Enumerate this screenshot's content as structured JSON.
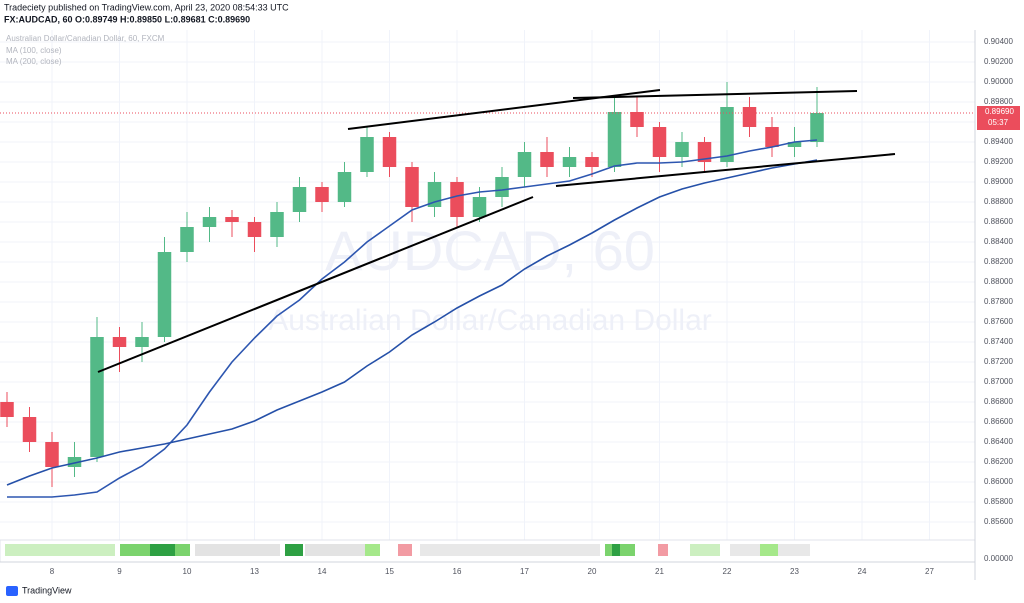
{
  "header": {
    "publisher_line": "Tradeciety published on TradingView.com, April 23, 2020 08:54:33 UTC",
    "symbol_line": "FX:AUDCAD, 60  O:0.89749  H:0.89850  L:0.89681  C:0.89690"
  },
  "footer": {
    "brand": "TradingView"
  },
  "chart_data": {
    "type": "candlestick",
    "title": "Australian Dollar/Canadian Dollar, 60, FXCM",
    "watermark": {
      "symbol": "AUDCAD, 60",
      "description": "Australian Dollar/Canadian Dollar"
    },
    "x": [
      -2,
      -1,
      0,
      1,
      2,
      3,
      4,
      5,
      6,
      7,
      8,
      9,
      10,
      11,
      12,
      13,
      14,
      15,
      16,
      17,
      18,
      19,
      20,
      21,
      22,
      23,
      24,
      25,
      26,
      27,
      28,
      29,
      30,
      31,
      32,
      33,
      34
    ],
    "open": [
      0.868,
      0.8665,
      0.864,
      0.8615,
      0.8625,
      0.8745,
      0.8735,
      0.8745,
      0.883,
      0.8855,
      0.8865,
      0.886,
      0.8845,
      0.887,
      0.8895,
      0.888,
      0.891,
      0.8945,
      0.8915,
      0.8875,
      0.89,
      0.8865,
      0.8885,
      0.8905,
      0.893,
      0.8915,
      0.8925,
      0.8915,
      0.897,
      0.8955,
      0.8925,
      0.894,
      0.892,
      0.8975,
      0.8955,
      0.8935,
      0.894
    ],
    "high": [
      0.869,
      0.8675,
      0.865,
      0.864,
      0.8765,
      0.8755,
      0.876,
      0.8845,
      0.887,
      0.8875,
      0.8872,
      0.8865,
      0.888,
      0.8905,
      0.89,
      0.892,
      0.8955,
      0.895,
      0.892,
      0.891,
      0.8905,
      0.8895,
      0.8915,
      0.894,
      0.8945,
      0.8935,
      0.893,
      0.8985,
      0.8985,
      0.896,
      0.895,
      0.8945,
      0.9,
      0.8985,
      0.8965,
      0.8955,
      0.8995
    ],
    "low": [
      0.8655,
      0.863,
      0.8595,
      0.8605,
      0.862,
      0.871,
      0.872,
      0.874,
      0.882,
      0.884,
      0.8845,
      0.883,
      0.8835,
      0.886,
      0.887,
      0.8875,
      0.8905,
      0.8905,
      0.886,
      0.8865,
      0.8855,
      0.886,
      0.8875,
      0.8895,
      0.8905,
      0.8905,
      0.8905,
      0.891,
      0.8945,
      0.891,
      0.8915,
      0.891,
      0.8915,
      0.8945,
      0.8925,
      0.8925,
      0.8935
    ],
    "close": [
      0.8665,
      0.864,
      0.8615,
      0.8625,
      0.8745,
      0.8735,
      0.8745,
      0.883,
      0.8855,
      0.8865,
      0.886,
      0.8845,
      0.887,
      0.8895,
      0.888,
      0.891,
      0.8945,
      0.8915,
      0.8875,
      0.89,
      0.8865,
      0.8885,
      0.8905,
      0.893,
      0.8915,
      0.8925,
      0.8915,
      0.897,
      0.8955,
      0.8925,
      0.894,
      0.892,
      0.8975,
      0.8955,
      0.8935,
      0.894,
      0.8969
    ],
    "up_color": "#53b987",
    "down_color": "#eb4d5c",
    "series": [
      {
        "name": "MA (100, close)",
        "color": "#2d56b0",
        "values": [
          0.8585,
          0.8585,
          0.8585,
          0.8587,
          0.859,
          0.8604,
          0.8616,
          0.8633,
          0.8657,
          0.869,
          0.872,
          0.8744,
          0.8766,
          0.8782,
          0.8803,
          0.882,
          0.884,
          0.8856,
          0.8872,
          0.888,
          0.8886,
          0.889,
          0.8892,
          0.8895,
          0.8898,
          0.8901,
          0.8908,
          0.8916,
          0.8919,
          0.8919,
          0.892,
          0.8923,
          0.8926,
          0.8931,
          0.8935,
          0.894,
          0.8942
        ]
      },
      {
        "name": "MA (200, close)",
        "color": "#2550a8",
        "values": [
          0.8597,
          0.8606,
          0.8614,
          0.8619,
          0.8624,
          0.863,
          0.8634,
          0.8638,
          0.8643,
          0.8648,
          0.8653,
          0.8661,
          0.8672,
          0.8681,
          0.869,
          0.87,
          0.8716,
          0.873,
          0.8747,
          0.876,
          0.8774,
          0.8786,
          0.8797,
          0.8813,
          0.8826,
          0.8837,
          0.8849,
          0.8862,
          0.8874,
          0.8885,
          0.8893,
          0.8899,
          0.8904,
          0.8909,
          0.8914,
          0.8918,
          0.8922
        ]
      }
    ],
    "last_price": {
      "value": 0.8969,
      "label": "0.89690"
    },
    "countdown": "05:37",
    "indicator_zero": "0.00000",
    "xlim": [
      -2.311,
      41.022
    ],
    "xticks": [
      {
        "value": 0,
        "label": "8"
      },
      {
        "value": 3,
        "label": "9"
      },
      {
        "value": 6,
        "label": "10"
      },
      {
        "value": 9,
        "label": "13"
      },
      {
        "value": 12,
        "label": "14"
      },
      {
        "value": 15,
        "label": "15"
      },
      {
        "value": 18,
        "label": "16"
      },
      {
        "value": 21,
        "label": "17"
      },
      {
        "value": 24,
        "label": "20"
      },
      {
        "value": 27,
        "label": "21"
      },
      {
        "value": 30,
        "label": "22"
      },
      {
        "value": 33,
        "label": "23"
      },
      {
        "value": 36,
        "label": "24"
      },
      {
        "value": 39,
        "label": "27"
      }
    ],
    "ylim": [
      0.8542,
      0.9052
    ],
    "yticks": [
      {
        "value": 0.856,
        "label": "0.85600"
      },
      {
        "value": 0.858,
        "label": "0.85800"
      },
      {
        "value": 0.86,
        "label": "0.86000"
      },
      {
        "value": 0.862,
        "label": "0.86200"
      },
      {
        "value": 0.864,
        "label": "0.86400"
      },
      {
        "value": 0.866,
        "label": "0.86600"
      },
      {
        "value": 0.868,
        "label": "0.86800"
      },
      {
        "value": 0.87,
        "label": "0.87000"
      },
      {
        "value": 0.872,
        "label": "0.87200"
      },
      {
        "value": 0.874,
        "label": "0.87400"
      },
      {
        "value": 0.876,
        "label": "0.87600"
      },
      {
        "value": 0.878,
        "label": "0.87800"
      },
      {
        "value": 0.88,
        "label": "0.88000"
      },
      {
        "value": 0.882,
        "label": "0.88200"
      },
      {
        "value": 0.884,
        "label": "0.88400"
      },
      {
        "value": 0.886,
        "label": "0.88600"
      },
      {
        "value": 0.888,
        "label": "0.88800"
      },
      {
        "value": 0.89,
        "label": "0.89000"
      },
      {
        "value": 0.892,
        "label": "0.89200"
      },
      {
        "value": 0.894,
        "label": "0.89400"
      },
      {
        "value": 0.896,
        "label": "0.89600"
      },
      {
        "value": 0.898,
        "label": "0.89800"
      },
      {
        "value": 0.9,
        "label": "0.90000"
      },
      {
        "value": 0.902,
        "label": "0.90200"
      },
      {
        "value": 0.904,
        "label": "0.90400"
      }
    ],
    "grid": true
  }
}
